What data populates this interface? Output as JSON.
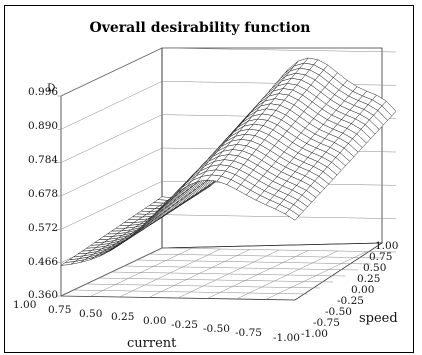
{
  "chart_data": {
    "type": "surface",
    "title": "Overall desirability function",
    "zlabel": "D",
    "xlabel": "current",
    "ylabel": "speed",
    "z_ticks": [
      "0.360",
      "0.466",
      "0.572",
      "0.678",
      "0.784",
      "0.890",
      "0.996"
    ],
    "x_ticks": [
      "1.00",
      "0.75",
      "0.50",
      "0.25",
      "0.00",
      "-0.25",
      "-0.50",
      "-0.75",
      "-1.00"
    ],
    "y_ticks": [
      "-1.00",
      "-0.75",
      "-0.50",
      "-0.25",
      "0.00",
      "0.25",
      "0.50",
      "0.75",
      "1.00"
    ],
    "zlim": [
      0.36,
      0.996
    ],
    "xlim": [
      -1,
      1
    ],
    "ylim": [
      -1,
      1
    ],
    "peak": {
      "current": -0.25,
      "speed": 1.0,
      "D": 0.99
    },
    "surface_samples": [
      {
        "current": 1.0,
        "speed": -1.0,
        "D": 0.45
      },
      {
        "current": 1.0,
        "speed": 1.0,
        "D": 0.59
      },
      {
        "current": -0.25,
        "speed": -1.0,
        "D": 0.45
      },
      {
        "current": -1.0,
        "speed": -1.0,
        "D": 0.66
      },
      {
        "current": -1.0,
        "speed": 1.0,
        "D": 0.74
      }
    ]
  }
}
